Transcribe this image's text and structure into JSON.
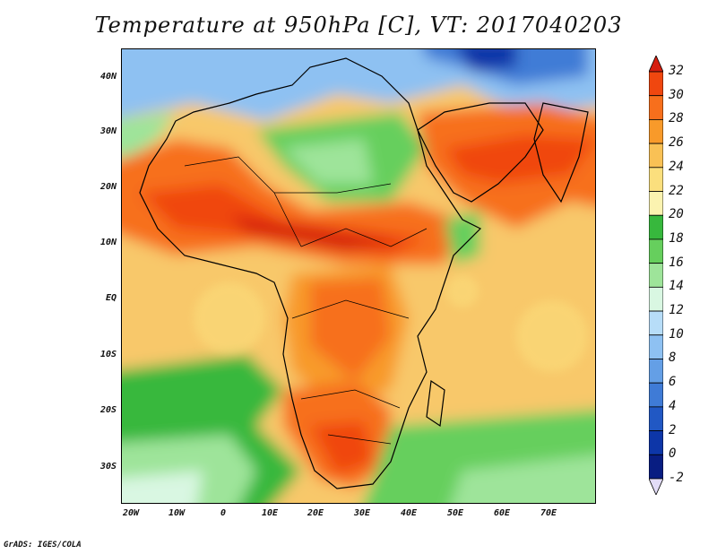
{
  "title": "Temperature at 950hPa [C], VT: 2017040203",
  "credit": "GrADS: IGES/COLA",
  "map": {
    "lat_ticks": [
      "40N",
      "30N",
      "20N",
      "10N",
      "EQ",
      "10S",
      "20S",
      "30S"
    ],
    "lon_ticks": [
      "20W",
      "10W",
      "0",
      "10E",
      "20E",
      "30E",
      "40E",
      "50E",
      "60E",
      "70E"
    ]
  },
  "colorbar": {
    "labels": [
      "32",
      "30",
      "28",
      "26",
      "24",
      "22",
      "20",
      "18",
      "16",
      "14",
      "12",
      "10",
      "8",
      "6",
      "4",
      "2",
      "0",
      "-2"
    ],
    "colors": [
      "#d51e0f",
      "#f0470f",
      "#f76f1c",
      "#f89a2a",
      "#f9c155",
      "#fbdf7d",
      "#fbf3b0",
      "#37b83d",
      "#66cf5d",
      "#9ee49a",
      "#d9f7e2",
      "#b7ddf8",
      "#8ec1f2",
      "#649fe6",
      "#3f7bd6",
      "#2158c4",
      "#0d36a8",
      "#081d82",
      "#e2dcf7"
    ]
  }
}
